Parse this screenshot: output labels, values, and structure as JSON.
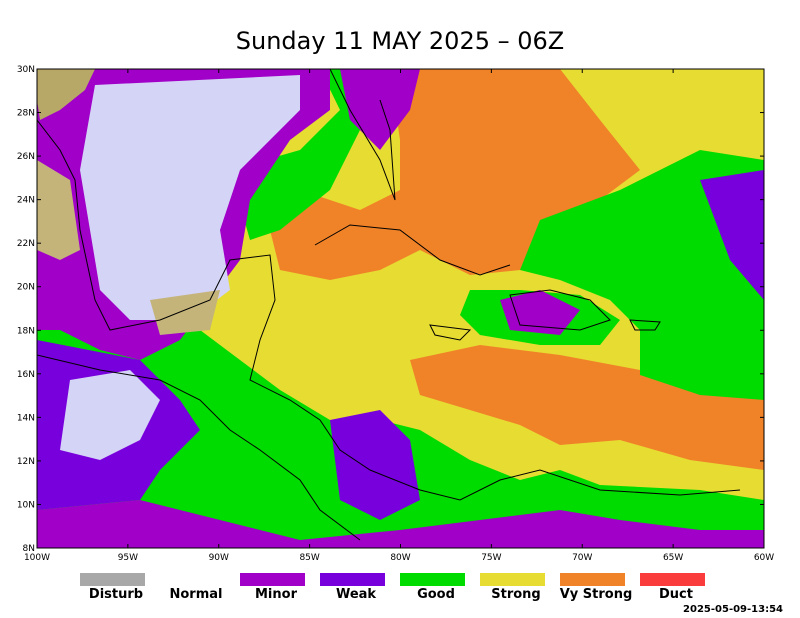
{
  "header": {
    "title": "Sunday 11 MAY 2025 – 06Z"
  },
  "map": {
    "lat_labels": [
      "30N",
      "28N",
      "26N",
      "24N",
      "22N",
      "20N",
      "18N",
      "16N",
      "14N",
      "12N",
      "10N",
      "8N"
    ],
    "lon_labels": [
      "100W",
      "95W",
      "90W",
      "85W",
      "80W",
      "75W",
      "70W",
      "65W",
      "60W"
    ]
  },
  "legend": {
    "items": [
      {
        "label": "Disturb",
        "color": "#a8a8a8"
      },
      {
        "label": "Normal",
        "color": "#ffffff"
      },
      {
        "label": "Minor",
        "color": "#a000c8"
      },
      {
        "label": "Weak",
        "color": "#7800dc"
      },
      {
        "label": "Good",
        "color": "#00dc00"
      },
      {
        "label": "Strong",
        "color": "#e6dc32"
      },
      {
        "label": "Vy Strong",
        "color": "#f08228"
      },
      {
        "label": "Duct",
        "color": "#fa3c3c"
      }
    ]
  },
  "footer": {
    "timestamp": "2025-05-09-13:54"
  }
}
